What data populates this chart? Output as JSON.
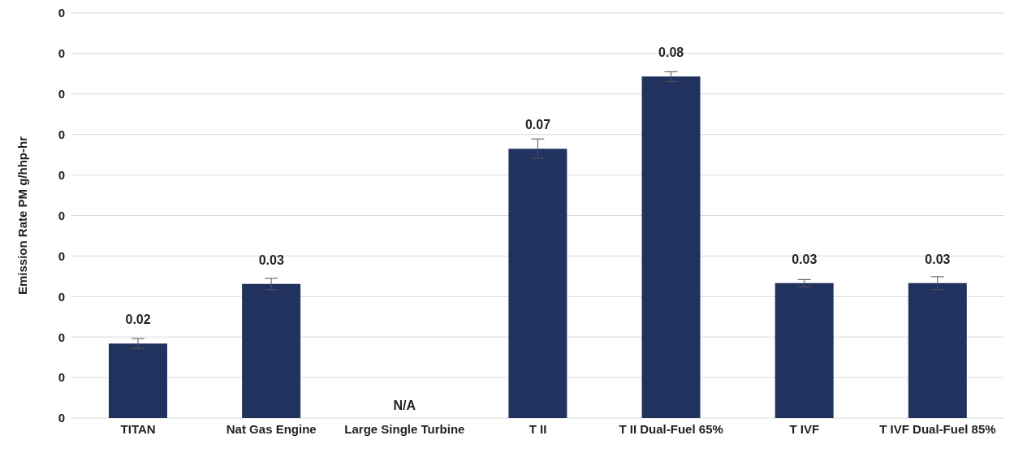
{
  "chart_data": {
    "type": "bar",
    "ylabel": "Emission Rate PM g/hhp-hr",
    "categories": [
      "TITAN",
      "Nat Gas Engine",
      "Large Single Turbine",
      "T II",
      "T II Dual-Fuel 65%",
      "T IVF",
      "T IVF Dual-Fuel 85%"
    ],
    "values": [
      0.0184,
      0.0331,
      null,
      0.0665,
      0.0843,
      0.0333,
      0.0333
    ],
    "errors": [
      0.0012,
      0.0014,
      null,
      0.0024,
      0.0012,
      0.0009,
      0.0016
    ],
    "value_labels": [
      "0.02",
      "0.03",
      "N/A",
      "0.07",
      "0.08",
      "0.03",
      "0.03"
    ],
    "color": "#21325e",
    "ylim": [
      0,
      0.1
    ],
    "yticks": [
      {
        "value": 0,
        "label": "0"
      },
      {
        "value": 0.01,
        "label": "0"
      },
      {
        "value": 0.02,
        "label": "0"
      },
      {
        "value": 0.03,
        "label": "0"
      },
      {
        "value": 0.04,
        "label": "0"
      },
      {
        "value": 0.05,
        "label": "0"
      },
      {
        "value": 0.06,
        "label": "0"
      },
      {
        "value": 0.07,
        "label": "0"
      },
      {
        "value": 0.08,
        "label": "0"
      },
      {
        "value": 0.09,
        "label": "0"
      },
      {
        "value": 0.1,
        "label": "0"
      }
    ],
    "grid": "y"
  }
}
